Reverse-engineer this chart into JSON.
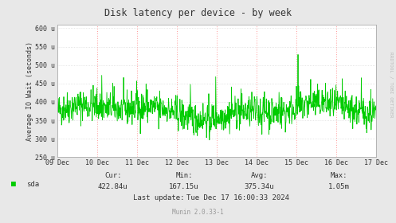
{
  "title": "Disk latency per device - by week",
  "ylabel": "Average IO Wait (seconds)",
  "bg_color": "#e8e8e8",
  "plot_bg_color": "#ffffff",
  "line_color": "#00cc00",
  "grid_color_h": "#cccccc",
  "grid_color_v": "#ff9999",
  "axis_color": "#aaaaaa",
  "text_color": "#333333",
  "watermark": "RRDTOOL / TOBI OETIKER",
  "footer_text": "Munin 2.0.33-1",
  "legend_label": "sda",
  "legend_color": "#00cc00",
  "stats_cur_label": "Cur:",
  "stats_min_label": "Min:",
  "stats_avg_label": "Avg:",
  "stats_max_label": "Max:",
  "stats_cur": "422.84u",
  "stats_min": "167.15u",
  "stats_avg": "375.34u",
  "stats_max": "1.05m",
  "last_update_label": "Last update:",
  "last_update": "Tue Dec 17 16:00:33 2024",
  "ylim": [
    250,
    610
  ],
  "yticks": [
    250,
    300,
    350,
    400,
    450,
    500,
    550,
    600
  ],
  "ytick_labels": [
    "250 u",
    "300 u",
    "350 u",
    "400 u",
    "450 u",
    "500 u",
    "550 u",
    "600 u"
  ],
  "x_day_labels": [
    "09 Dec",
    "10 Dec",
    "11 Dec",
    "12 Dec",
    "13 Dec",
    "14 Dec",
    "15 Dec",
    "16 Dec",
    "17 Dec"
  ],
  "x_day_positions": [
    0,
    1,
    2,
    3,
    4,
    5,
    6,
    7,
    8
  ],
  "x_vline_positions": [
    1,
    2,
    3,
    4,
    5,
    6,
    7,
    8
  ],
  "seed": 42,
  "n_points": 1008
}
